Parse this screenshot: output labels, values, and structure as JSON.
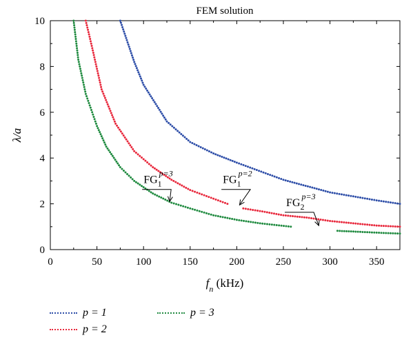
{
  "chart_data": {
    "type": "scatter",
    "title": "FEM solution",
    "xlabel": "f",
    "xlabel_sub": "n",
    "xlabel_unit": " (kHz)",
    "ylabel": "λ/a",
    "xlim": [
      0,
      375
    ],
    "ylim": [
      0,
      10
    ],
    "xticks": [
      0,
      50,
      100,
      150,
      200,
      250,
      300,
      350
    ],
    "yticks": [
      0,
      2,
      4,
      6,
      8,
      10
    ],
    "grid": false,
    "legend_position": "bottom-left",
    "series": [
      {
        "name": "p = 1",
        "color": "#2e4ea8",
        "points": [
          [
            75,
            10
          ],
          [
            90,
            8.2
          ],
          [
            100,
            7.2
          ],
          [
            125,
            5.6
          ],
          [
            150,
            4.7
          ],
          [
            175,
            4.2
          ],
          [
            200,
            3.8
          ],
          [
            250,
            3.05
          ],
          [
            300,
            2.5
          ],
          [
            350,
            2.15
          ],
          [
            375,
            2.0
          ]
        ]
      },
      {
        "name": "p = 2",
        "color": "#e8283c",
        "points": [
          [
            38,
            10
          ],
          [
            45,
            8.8
          ],
          [
            55,
            7.0
          ],
          [
            70,
            5.5
          ],
          [
            90,
            4.3
          ],
          [
            110,
            3.6
          ],
          [
            130,
            3.05
          ],
          [
            150,
            2.6
          ],
          [
            170,
            2.3
          ],
          [
            190,
            2.0
          ]
        ]
      },
      {
        "name": "p = 2",
        "color": "#e8283c",
        "points": [
          [
            207,
            1.8
          ],
          [
            230,
            1.65
          ],
          [
            250,
            1.5
          ],
          [
            275,
            1.4
          ],
          [
            300,
            1.25
          ],
          [
            325,
            1.15
          ],
          [
            350,
            1.05
          ],
          [
            375,
            1.0
          ]
        ]
      },
      {
        "name": "p = 3",
        "color": "#1f8a3f",
        "points": [
          [
            25,
            10
          ],
          [
            30,
            8.3
          ],
          [
            38,
            6.8
          ],
          [
            50,
            5.4
          ],
          [
            60,
            4.5
          ],
          [
            75,
            3.6
          ],
          [
            90,
            3.0
          ],
          [
            110,
            2.45
          ],
          [
            130,
            2.05
          ],
          [
            150,
            1.8
          ],
          [
            175,
            1.5
          ],
          [
            200,
            1.3
          ],
          [
            225,
            1.15
          ],
          [
            258,
            1.0
          ]
        ]
      },
      {
        "name": "p = 3",
        "color": "#1f8a3f",
        "points": [
          [
            308,
            0.82
          ],
          [
            330,
            0.78
          ],
          [
            350,
            0.74
          ],
          [
            375,
            0.7
          ]
        ]
      }
    ],
    "annotations": [
      {
        "text": "FG",
        "sub": "1",
        "sup": "p=3",
        "x": 100,
        "y": 2.9,
        "arrow_to": [
          128,
          2.1
        ]
      },
      {
        "text": "FG",
        "sub": "1",
        "sup": "p=2",
        "x": 185,
        "y": 2.9,
        "arrow_to": [
          203,
          1.95
        ]
      },
      {
        "text": "FG",
        "sub": "2",
        "sup": "p=3",
        "x": 253,
        "y": 1.9,
        "arrow_to": [
          288,
          1.05
        ]
      }
    ]
  },
  "legend": [
    {
      "label": "p = 1",
      "color": "#2e4ea8"
    },
    {
      "label": "p = 2",
      "color": "#e8283c"
    },
    {
      "label": "p = 3",
      "color": "#1f8a3f"
    }
  ]
}
